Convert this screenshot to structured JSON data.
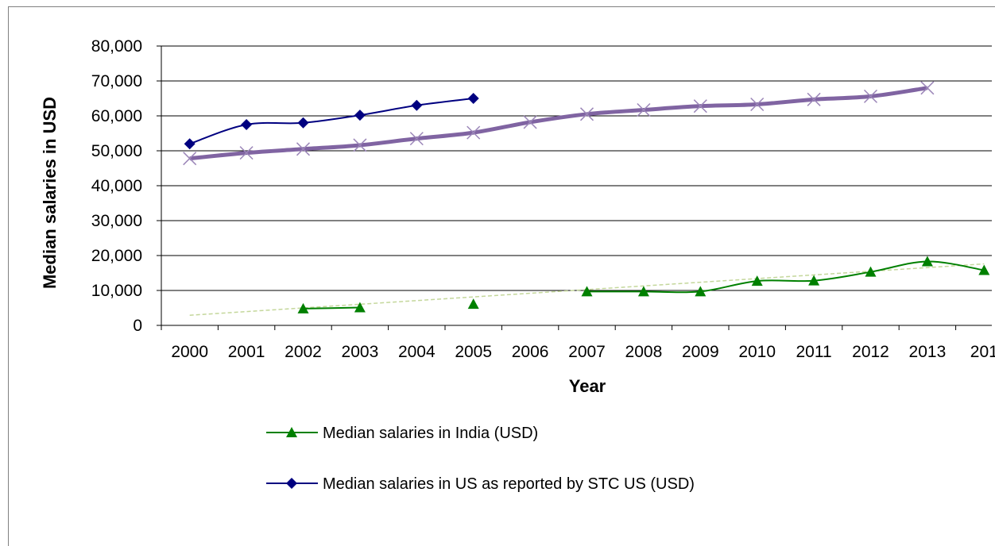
{
  "chart_data": {
    "type": "line",
    "title": "",
    "xlabel": "Year",
    "ylabel": "Median salaries in USD",
    "categories": [
      "2000",
      "2001",
      "2002",
      "2003",
      "2004",
      "2005",
      "2006",
      "2007",
      "2008",
      "2009",
      "2010",
      "2011",
      "2012",
      "2013",
      "201"
    ],
    "ylim": [
      0,
      80000
    ],
    "yticks": [
      0,
      10000,
      20000,
      30000,
      40000,
      50000,
      60000,
      70000,
      80000
    ],
    "ytick_labels": [
      "0",
      "10,000",
      "20,000",
      "30,000",
      "40,000",
      "50,000",
      "60,000",
      "70,000",
      "80,000"
    ],
    "grid": "horizontal",
    "legend_position": "bottom",
    "series": [
      {
        "name": "Median salaries in India (USD)",
        "color": "#008000",
        "marker": "triangle",
        "values": [
          null,
          null,
          4800,
          5100,
          null,
          6100,
          null,
          9700,
          9700,
          9700,
          12700,
          12800,
          15300,
          18300,
          15800
        ]
      },
      {
        "name": "Median salaries in  US as reported by STC US (USD)",
        "color": "#000080",
        "marker": "diamond",
        "values": [
          52000,
          57500,
          58000,
          60200,
          63000,
          65000,
          null,
          null,
          null,
          null,
          null,
          null,
          null,
          null,
          null
        ]
      },
      {
        "name": "",
        "color": "#8064A2",
        "marker": "x",
        "values": [
          47800,
          49400,
          50500,
          51600,
          53500,
          55200,
          58200,
          60500,
          61700,
          62800,
          63300,
          64700,
          65600,
          68000,
          null
        ]
      }
    ],
    "trendline": {
      "series": "Median salaries in India (USD)",
      "color": "#C4D79B",
      "style": "dashed",
      "from": {
        "x": "2000",
        "y": 2900
      },
      "to": {
        "x": "201",
        "y": 17600
      }
    }
  }
}
